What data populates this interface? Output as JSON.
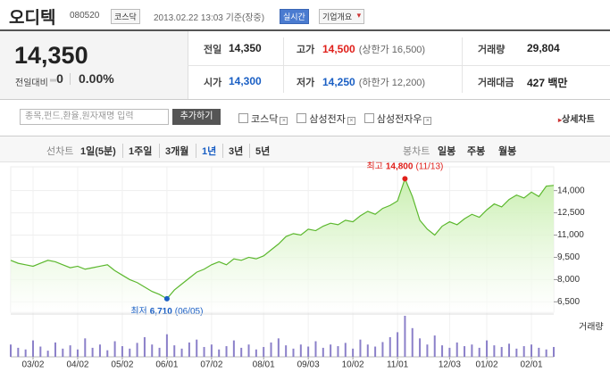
{
  "header": {
    "name": "오디텍",
    "code": "080520",
    "market": "코스닥",
    "datetime": "2013.02.22 13:03 기준(장중)",
    "realtime": "실시간",
    "company_info": "기업개요"
  },
  "price": {
    "current": "14,350",
    "change_label": "전일대비",
    "change": "0",
    "change_rate": "0.00%"
  },
  "quotes": [
    {
      "label": "전일",
      "value": "14,350"
    },
    {
      "label": "고가",
      "value": "14,500",
      "note": "(상한가 16,500)"
    },
    {
      "label": "거래량",
      "value": "29,804"
    },
    {
      "label": "시가",
      "value": "14,300"
    },
    {
      "label": "저가",
      "value": "14,250",
      "note": "(하한가 12,200)"
    },
    {
      "label": "거래대금",
      "value": "427 백만"
    }
  ],
  "search": {
    "placeholder": "종목,펀드,환율,원자재명 입력",
    "button": "추가하기",
    "compare": [
      "코스닥",
      "삼성전자",
      "삼성전자우"
    ],
    "detail": "상세차트"
  },
  "tabs": {
    "line_label": "선차트",
    "line_periods": [
      "1일(5분)",
      "1주일",
      "3개월",
      "1년",
      "3년",
      "5년"
    ],
    "active": "1년",
    "candle_label": "봉차트",
    "candle_periods": [
      "일봉",
      "주봉",
      "월봉"
    ]
  },
  "chart_data": {
    "type": "line",
    "grid": true,
    "xlim": [
      0,
      73
    ],
    "xticks": [
      {
        "value": 3,
        "label": "03/02"
      },
      {
        "value": 9,
        "label": "04/02"
      },
      {
        "value": 15,
        "label": "05/02"
      },
      {
        "value": 21,
        "label": "06/01"
      },
      {
        "value": 27,
        "label": "07/02"
      },
      {
        "value": 34,
        "label": "08/01"
      },
      {
        "value": 40,
        "label": "09/03"
      },
      {
        "value": 46,
        "label": "10/02"
      },
      {
        "value": 52,
        "label": "11/01"
      },
      {
        "value": 59,
        "label": "12/03"
      },
      {
        "value": 64,
        "label": "01/02"
      },
      {
        "value": 70,
        "label": "02/01"
      }
    ],
    "ylim": [
      5800,
      15000
    ],
    "yticks": [
      {
        "value": 6500,
        "label": "6,500"
      },
      {
        "value": 8000,
        "label": "8,000"
      },
      {
        "value": 9500,
        "label": "9,500"
      },
      {
        "value": 11000,
        "label": "11,000"
      },
      {
        "value": 12500,
        "label": "12,500"
      },
      {
        "value": 14000,
        "label": "14,000"
      }
    ],
    "series": [
      {
        "color": "#5cb82e",
        "fill": "#c9efb0",
        "values": [
          9300,
          9100,
          9000,
          8900,
          9100,
          9300,
          9200,
          9000,
          8800,
          8900,
          8700,
          8800,
          8900,
          9000,
          8600,
          8300,
          8000,
          7800,
          7500,
          7200,
          7000,
          6710,
          7300,
          7700,
          8100,
          8500,
          8700,
          9000,
          9200,
          9000,
          9400,
          9300,
          9500,
          9400,
          9600,
          10000,
          10400,
          10900,
          11100,
          11000,
          11400,
          11300,
          11600,
          11800,
          11700,
          12000,
          11900,
          12300,
          12600,
          12400,
          12800,
          13000,
          13300,
          14800,
          13600,
          12000,
          11400,
          11000,
          11600,
          11900,
          11700,
          12100,
          12400,
          12200,
          12700,
          13100,
          12900,
          13400,
          13700,
          13500,
          13900,
          13600,
          14300,
          14350
        ]
      }
    ],
    "high": {
      "label": "최고",
      "value_label": "14,800",
      "date": "(11/13)",
      "x": 53,
      "color": "#e0201b"
    },
    "low": {
      "label": "최저",
      "value_label": "6,710",
      "date": "(06/05)",
      "x": 21,
      "color": "#1a5fc4"
    },
    "volume": {
      "label": "거래량",
      "color": "#8b80c9",
      "ylim": [
        0,
        100
      ],
      "values": [
        30,
        22,
        18,
        40,
        25,
        15,
        35,
        20,
        28,
        18,
        45,
        22,
        30,
        16,
        38,
        26,
        20,
        34,
        48,
        30,
        22,
        55,
        28,
        20,
        35,
        42,
        24,
        30,
        18,
        26,
        40,
        22,
        30,
        18,
        24,
        35,
        45,
        28,
        20,
        30,
        25,
        38,
        22,
        30,
        26,
        34,
        20,
        42,
        30,
        25,
        36,
        48,
        60,
        100,
        70,
        45,
        30,
        52,
        28,
        22,
        35,
        26,
        30,
        22,
        40,
        28,
        24,
        32,
        20,
        26,
        30,
        22,
        18,
        24
      ]
    }
  }
}
